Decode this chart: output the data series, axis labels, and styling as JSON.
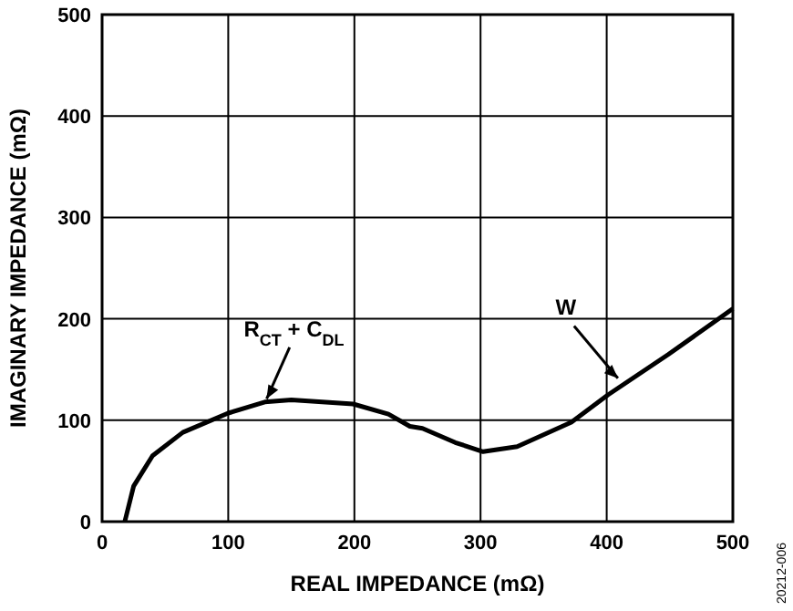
{
  "chart_data": {
    "type": "line",
    "xlabel": "REAL IMPEDANCE (mΩ)",
    "ylabel": "IMAGINARY IMPEDANCE (mΩ)",
    "x": [
      18,
      25,
      40,
      64,
      100,
      129,
      150,
      199,
      227,
      244,
      254,
      280,
      302,
      329,
      372,
      401,
      449,
      500
    ],
    "series": [
      {
        "color": "#000000",
        "values": [
          0,
          35,
          65,
          88,
          107,
          118,
          120,
          116,
          106,
          94,
          92,
          78,
          69,
          74,
          98,
          125,
          165,
          210
        ]
      }
    ],
    "xlim": [
      0,
      500
    ],
    "xticks": [
      0,
      100,
      200,
      300,
      400,
      500
    ],
    "ylim": [
      0,
      500
    ],
    "yticks": [
      0,
      100,
      200,
      300,
      400,
      500
    ],
    "grid": true,
    "marker": "none",
    "line_style": "solid",
    "annotations": [
      {
        "text": "R$_{CT}$ + C$_{DL}$",
        "x": 129,
        "y": 118
      },
      {
        "text": "W",
        "x": 411,
        "y": 139
      },
      "20212-006"
    ]
  }
}
